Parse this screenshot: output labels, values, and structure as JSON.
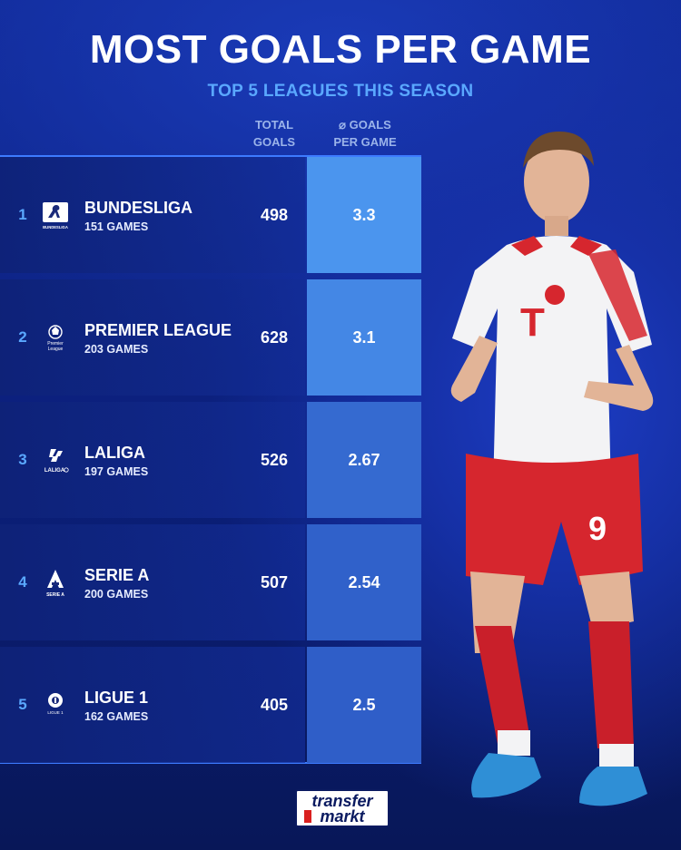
{
  "title": "MOST GOALS PER GAME",
  "subtitle": "TOP 5 LEAGUES THIS SEASON",
  "columns": {
    "total_goals_line1": "TOTAL",
    "total_goals_line2": "GOALS",
    "avg_line1": "⌀ GOALS",
    "avg_line2": "PER GAME"
  },
  "colors": {
    "accent_light": "#5aa8ff",
    "bar_max": "#4b95ee",
    "bar_min": "#2f5ec8",
    "line": "#3d7bff"
  },
  "icons": [
    "bundesliga-logo-icon",
    "premier-league-logo-icon",
    "laliga-logo-icon",
    "serie-a-logo-icon",
    "ligue-1-logo-icon"
  ],
  "brand": {
    "line1": "transfer",
    "line2": "markt"
  },
  "chart_data": {
    "type": "table",
    "title": "MOST GOALS PER GAME",
    "subtitle": "TOP 5 LEAGUES THIS SEASON",
    "columns": [
      "TOTAL GOALS",
      "⌀ GOALS PER GAME"
    ],
    "rows": [
      {
        "rank": "1",
        "league": "BUNDESLIGA",
        "games": "151 GAMES",
        "logo_text": "BUNDESLIGA",
        "total_goals": 498,
        "goals_per_game": 3.3
      },
      {
        "rank": "2",
        "league": "PREMIER LEAGUE",
        "games": "203 GAMES",
        "logo_text": "Premier League",
        "total_goals": 628,
        "goals_per_game": 3.1
      },
      {
        "rank": "3",
        "league": "LALIGA",
        "games": "197 GAMES",
        "logo_text": "LALIGA",
        "total_goals": 526,
        "goals_per_game": 2.67
      },
      {
        "rank": "4",
        "league": "SERIE A",
        "games": "200 GAMES",
        "logo_text": "SERIE A",
        "total_goals": 507,
        "goals_per_game": 2.54
      },
      {
        "rank": "5",
        "league": "LIGUE 1",
        "games": "162 GAMES",
        "logo_text": "LIGUE 1",
        "total_goals": 405,
        "goals_per_game": 2.5
      }
    ]
  }
}
